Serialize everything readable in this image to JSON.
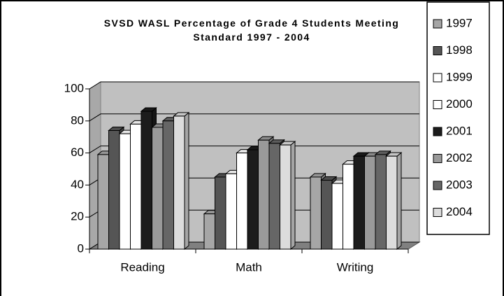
{
  "chart_data": {
    "type": "bar3d",
    "title": "SVSD WASL Percentage of Grade 4 Students Meeting Standard 1997 - 2004",
    "categories": [
      "Reading",
      "Math",
      "Writing"
    ],
    "series": [
      {
        "name": "1997",
        "color": "#a6a6a6",
        "values": [
          59,
          22,
          45
        ]
      },
      {
        "name": "1998",
        "color": "#555555",
        "values": [
          74,
          45,
          43
        ]
      },
      {
        "name": "1999",
        "color": "#ffffff",
        "values": [
          72,
          47,
          41
        ]
      },
      {
        "name": "2000",
        "color": "#ffffff",
        "values": [
          78,
          60,
          53
        ]
      },
      {
        "name": "2001",
        "color": "#1c1c1c",
        "values": [
          86,
          62,
          58
        ]
      },
      {
        "name": "2002",
        "color": "#9a9a9a",
        "values": [
          76,
          68,
          58
        ]
      },
      {
        "name": "2003",
        "color": "#666666",
        "values": [
          80,
          66,
          59
        ]
      },
      {
        "name": "2004",
        "color": "#dcdcdc",
        "values": [
          83,
          65,
          58
        ]
      }
    ],
    "ylim": [
      0,
      100
    ],
    "yticks": [
      0,
      20,
      40,
      60,
      80,
      100
    ],
    "grid": true,
    "legend": "right"
  }
}
